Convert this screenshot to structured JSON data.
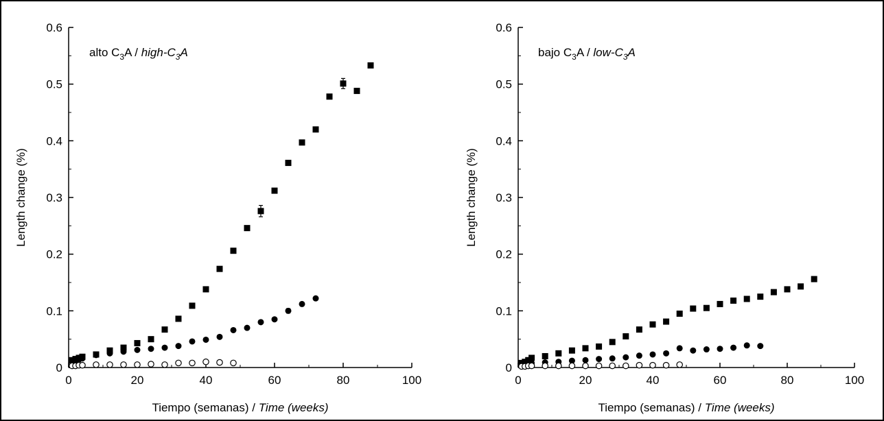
{
  "chart_data": [
    {
      "type": "scatter",
      "annotation": {
        "pre": "alto C",
        "sub": "3",
        "post": "A / ",
        "ital_pre": "high-C",
        "ital_sub": "3",
        "ital_post": "A"
      },
      "xlabel": {
        "plain": "Tiempo (semanas) / ",
        "italic": "Time (weeks)"
      },
      "ylabel": "Length change (%)",
      "xlim": [
        0,
        100
      ],
      "ylim": [
        0,
        0.6
      ],
      "xticks": [
        "0",
        "20",
        "40",
        "60",
        "80",
        "100"
      ],
      "yticks": [
        "0",
        "0.1",
        "0.2",
        "0.3",
        "0.4",
        "0.5",
        "0.6"
      ],
      "grid": false,
      "series": [
        {
          "marker": "square-filled",
          "x": [
            1,
            2,
            3,
            4,
            8,
            12,
            16,
            20,
            24,
            28,
            32,
            36,
            40,
            44,
            48,
            52,
            56,
            60,
            64,
            68,
            72,
            76,
            80,
            84,
            88
          ],
          "y": [
            0.013,
            0.015,
            0.017,
            0.019,
            0.023,
            0.03,
            0.035,
            0.043,
            0.05,
            0.067,
            0.086,
            0.109,
            0.138,
            0.174,
            0.206,
            0.246,
            0.276,
            0.312,
            0.361,
            0.397,
            0.42,
            0.478,
            0.501,
            0.488,
            0.533
          ],
          "errors": [
            0,
            0,
            0,
            0,
            0,
            0,
            0,
            0,
            0,
            0,
            0,
            0,
            0,
            0,
            0,
            0,
            0.01,
            0,
            0,
            0,
            0,
            0,
            0.009,
            0,
            0
          ]
        },
        {
          "marker": "circle-filled",
          "x": [
            1,
            2,
            3,
            4,
            8,
            12,
            16,
            20,
            24,
            28,
            32,
            36,
            40,
            44,
            48,
            52,
            56,
            60,
            64,
            68,
            72
          ],
          "y": [
            0.01,
            0.012,
            0.014,
            0.016,
            0.022,
            0.025,
            0.028,
            0.031,
            0.033,
            0.035,
            0.038,
            0.046,
            0.049,
            0.054,
            0.066,
            0.07,
            0.08,
            0.085,
            0.1,
            0.112,
            0.122
          ],
          "errors": [
            0,
            0,
            0,
            0,
            0,
            0,
            0,
            0,
            0,
            0,
            0,
            0,
            0,
            0,
            0,
            0,
            0,
            0,
            0.004,
            0,
            0
          ]
        },
        {
          "marker": "circle-open",
          "x": [
            1,
            2,
            3,
            4,
            8,
            12,
            16,
            20,
            24,
            28,
            32,
            36,
            40,
            44,
            48
          ],
          "y": [
            0.003,
            0.003,
            0.004,
            0.004,
            0.005,
            0.005,
            0.005,
            0.005,
            0.006,
            0.005,
            0.008,
            0.008,
            0.01,
            0.009,
            0.008
          ],
          "errors": [
            0,
            0,
            0,
            0,
            0,
            0,
            0,
            0.003,
            0,
            0,
            0,
            0.003,
            0,
            0.003,
            0
          ]
        }
      ]
    },
    {
      "type": "scatter",
      "annotation": {
        "pre": "bajo C",
        "sub": "3",
        "post": "A / ",
        "ital_pre": "low-C",
        "ital_sub": "3",
        "ital_post": "A"
      },
      "xlabel": {
        "plain": "Tiempo (semanas) / ",
        "italic": "Time (weeks)"
      },
      "ylabel": "Length change (%)",
      "xlim": [
        0,
        100
      ],
      "ylim": [
        0,
        0.6
      ],
      "xticks": [
        "0",
        "20",
        "40",
        "60",
        "80",
        "100"
      ],
      "yticks": [
        "0",
        "0.1",
        "0.2",
        "0.3",
        "0.4",
        "0.5",
        "0.6"
      ],
      "grid": false,
      "series": [
        {
          "marker": "square-filled",
          "x": [
            1,
            2,
            3,
            4,
            8,
            12,
            16,
            20,
            24,
            28,
            32,
            36,
            40,
            44,
            48,
            52,
            56,
            60,
            64,
            68,
            72,
            76,
            80,
            84,
            88
          ],
          "y": [
            0.008,
            0.01,
            0.013,
            0.017,
            0.02,
            0.025,
            0.03,
            0.034,
            0.037,
            0.045,
            0.055,
            0.067,
            0.076,
            0.081,
            0.095,
            0.104,
            0.105,
            0.112,
            0.118,
            0.121,
            0.125,
            0.133,
            0.138,
            0.143,
            0.156
          ],
          "errors": [
            0,
            0,
            0,
            0,
            0,
            0,
            0,
            0,
            0,
            0,
            0,
            0,
            0,
            0,
            0,
            0.004,
            0,
            0,
            0,
            0,
            0,
            0,
            0,
            0,
            0
          ]
        },
        {
          "marker": "circle-filled",
          "x": [
            1,
            2,
            3,
            4,
            8,
            12,
            16,
            20,
            24,
            28,
            32,
            36,
            40,
            44,
            48,
            52,
            56,
            60,
            64,
            68,
            72
          ],
          "y": [
            0.005,
            0.006,
            0.007,
            0.008,
            0.009,
            0.01,
            0.012,
            0.013,
            0.015,
            0.016,
            0.018,
            0.021,
            0.023,
            0.025,
            0.034,
            0.03,
            0.032,
            0.033,
            0.035,
            0.039,
            0.038
          ],
          "errors": [
            0,
            0,
            0,
            0,
            0,
            0,
            0,
            0,
            0,
            0,
            0,
            0,
            0,
            0,
            0,
            0,
            0,
            0,
            0,
            0,
            0
          ]
        },
        {
          "marker": "circle-open",
          "x": [
            1,
            2,
            3,
            4,
            8,
            12,
            16,
            20,
            24,
            28,
            32,
            36,
            40,
            44,
            48
          ],
          "y": [
            0.002,
            0.002,
            0.003,
            0.003,
            0.003,
            0.003,
            0.003,
            0.003,
            0.003,
            0.003,
            0.003,
            0.004,
            0.004,
            0.004,
            0.005
          ],
          "errors": [
            0,
            0,
            0,
            0,
            0,
            0,
            0,
            0,
            0,
            0,
            0,
            0,
            0,
            0,
            0
          ]
        }
      ]
    }
  ]
}
